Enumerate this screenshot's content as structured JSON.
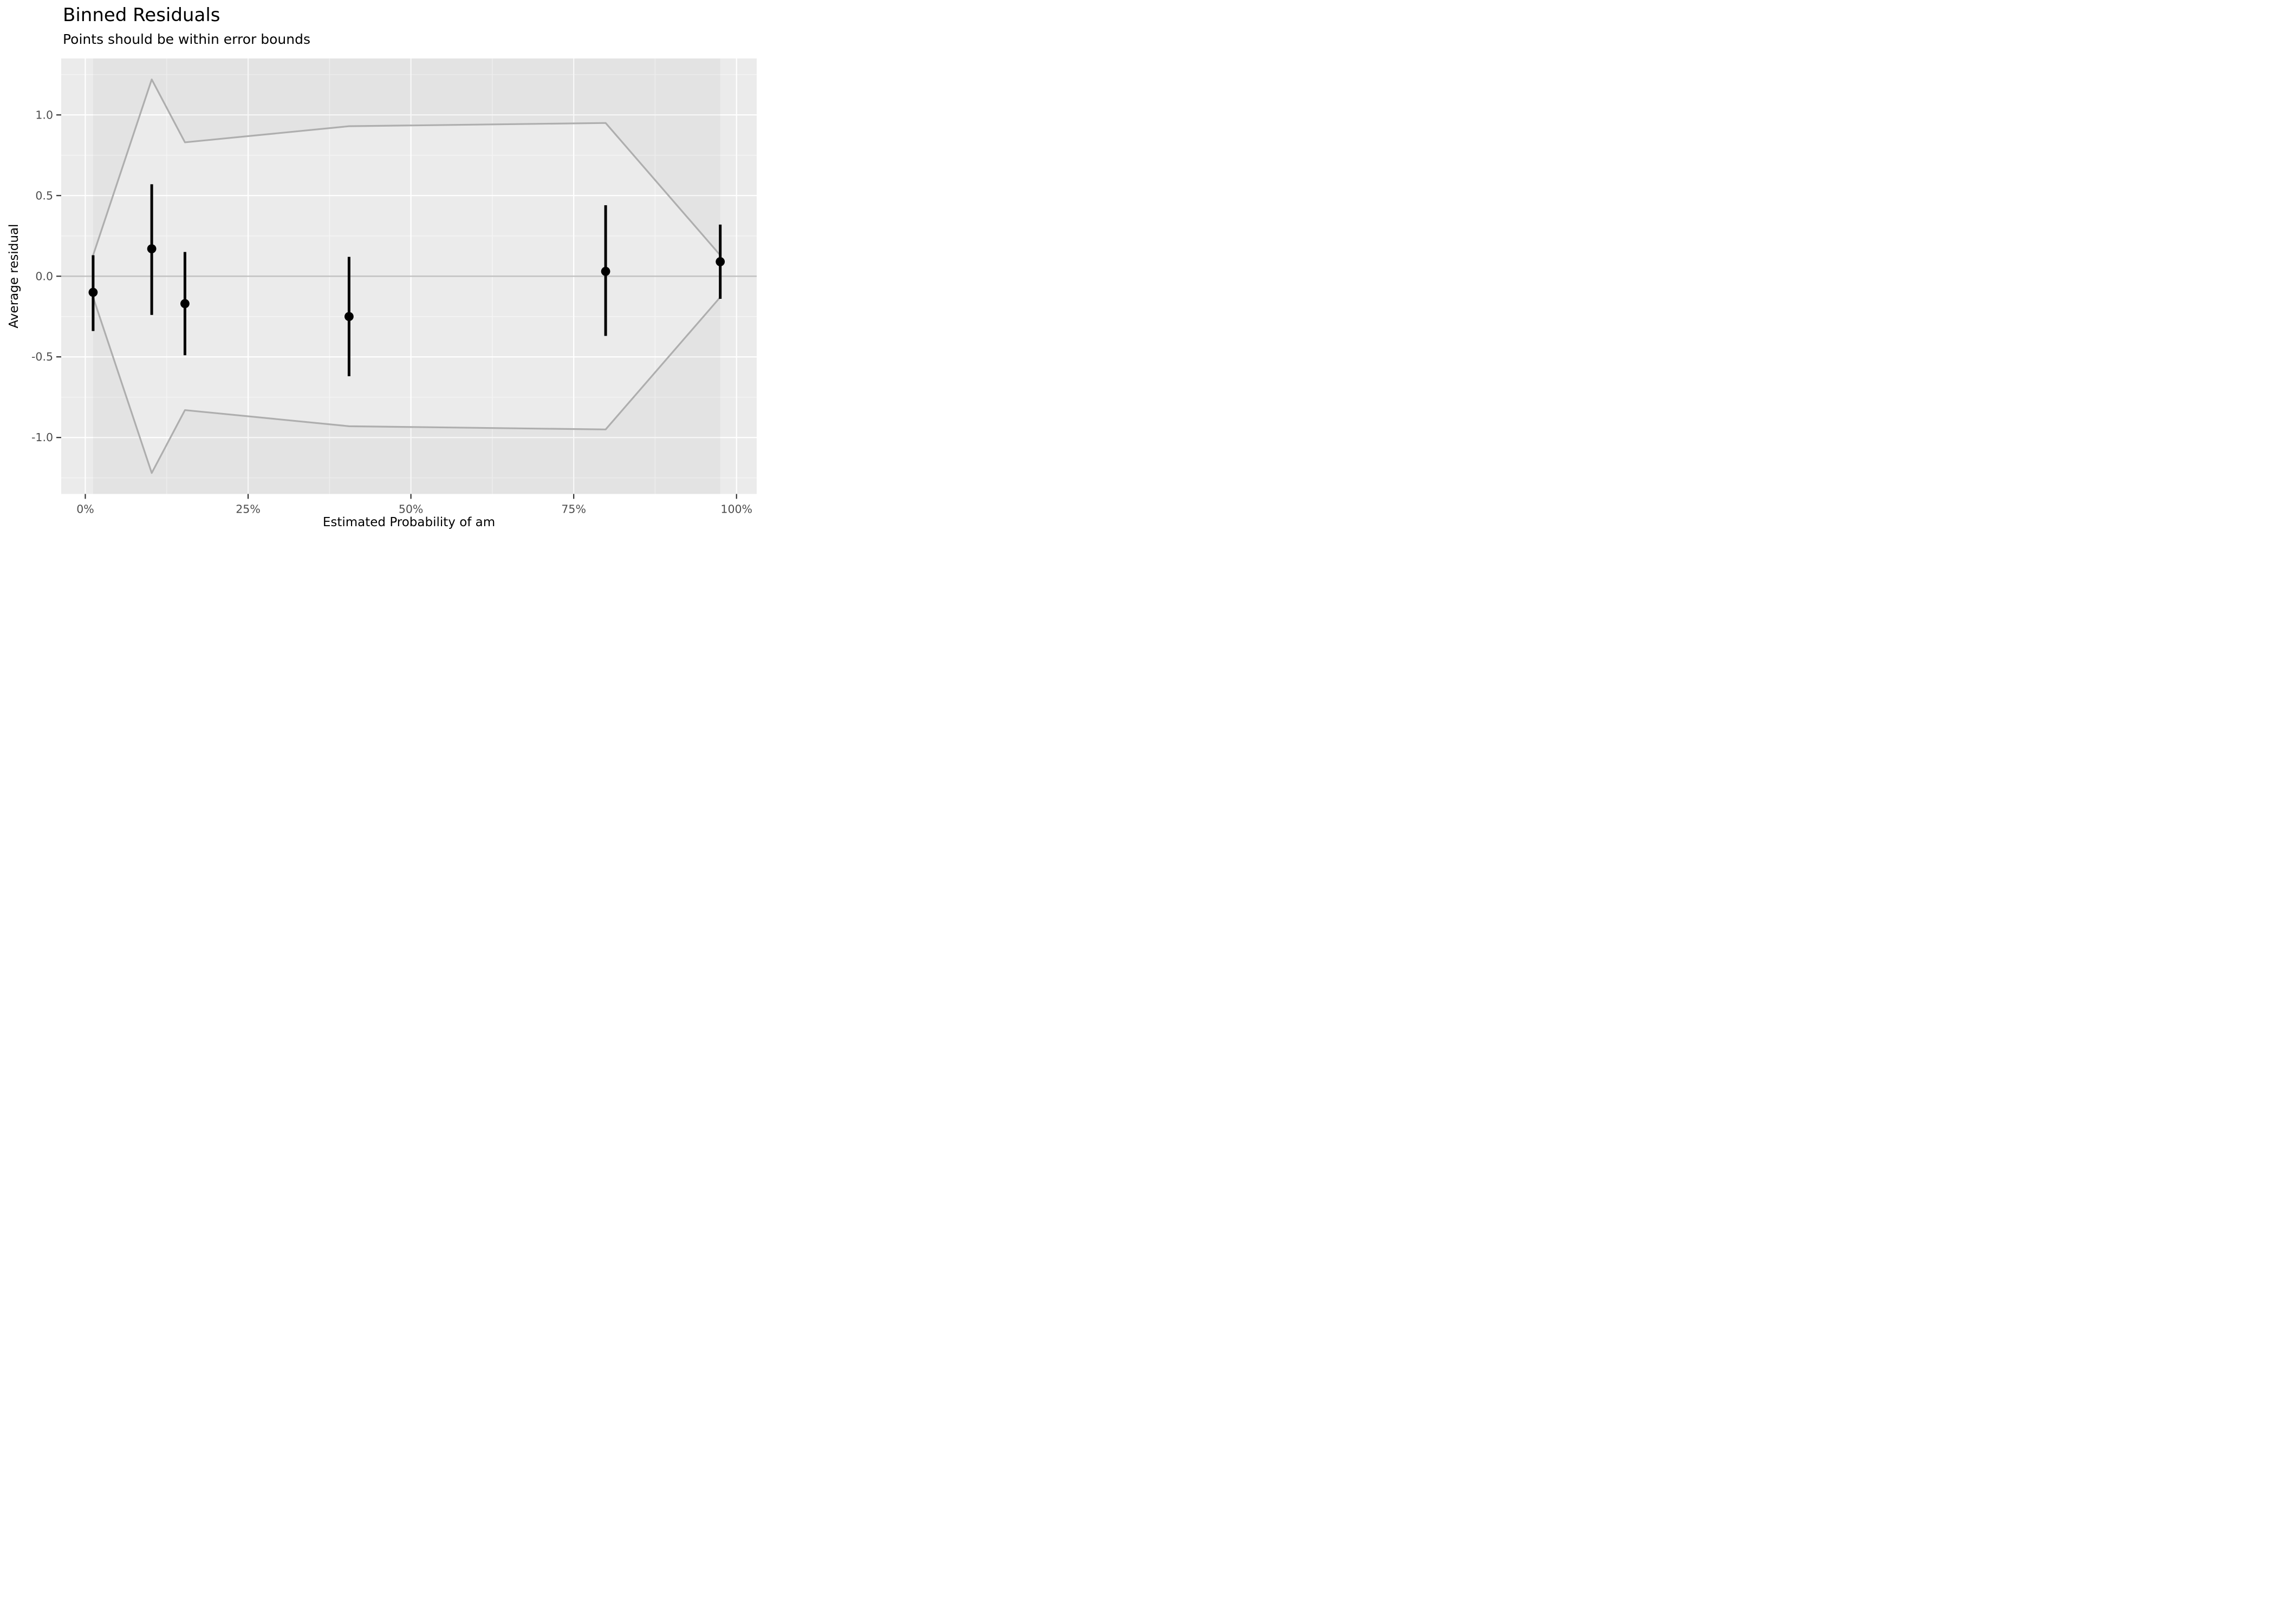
{
  "title": "Binned Residuals",
  "subtitle": "Points should be within error bounds",
  "chart_data": {
    "type": "scatter",
    "title": "Binned Residuals",
    "subtitle": "Points should be within error bounds",
    "xlabel": "Estimated Probability of am",
    "ylabel": "Average residual",
    "x_tick_labels": [
      "0%",
      "25%",
      "50%",
      "75%",
      "100%"
    ],
    "x_tick_values": [
      0,
      25,
      50,
      75,
      100
    ],
    "x_minor_values": [
      12.5,
      37.5,
      62.5,
      87.5
    ],
    "y_tick_labels": [
      "1.0",
      "0.5",
      "0.0",
      "-0.5",
      "-1.0"
    ],
    "y_tick_values": [
      1.0,
      0.5,
      0.0,
      -0.5,
      -1.0
    ],
    "y_minor_values": [
      1.25,
      0.75,
      0.25,
      -0.25,
      -0.75,
      -1.25
    ],
    "xlim": [
      -3.7,
      103.1
    ],
    "ylim": [
      -1.35,
      1.35
    ],
    "x_unit": "percent",
    "grid": "on",
    "legend": "none",
    "zero_line": 0,
    "bins": {
      "x": [
        1.2,
        10.2,
        15.3,
        40.5,
        79.9,
        97.5
      ],
      "avg_residual": [
        -0.1,
        0.17,
        -0.17,
        -0.25,
        0.03,
        0.09
      ],
      "ci_lower": [
        -0.34,
        -0.24,
        -0.49,
        -0.62,
        -0.37,
        -0.14
      ],
      "ci_upper": [
        0.13,
        0.57,
        0.15,
        0.12,
        0.44,
        0.32
      ]
    },
    "error_bounds": {
      "x": [
        1.2,
        10.2,
        15.3,
        40.5,
        79.9,
        97.5
      ],
      "upper": [
        0.13,
        1.22,
        0.83,
        0.93,
        0.95,
        0.13
      ],
      "lower": [
        -0.13,
        -1.22,
        -0.83,
        -0.93,
        -0.95,
        -0.13
      ]
    },
    "colors": {
      "panel_background": "#ebebeb",
      "grid_major": "#ffffff",
      "grid_minor": "#f5f5f5",
      "zero_line": "#c2c2c2",
      "bound_line": "#aeaeae",
      "outside_bounds_shade": "rgba(0,0,0,0.030)",
      "point": "#000000",
      "error_bar": "#000000",
      "tick_mark": "#333333",
      "tick_label": "#4d4d4d",
      "text": "#000000"
    }
  }
}
